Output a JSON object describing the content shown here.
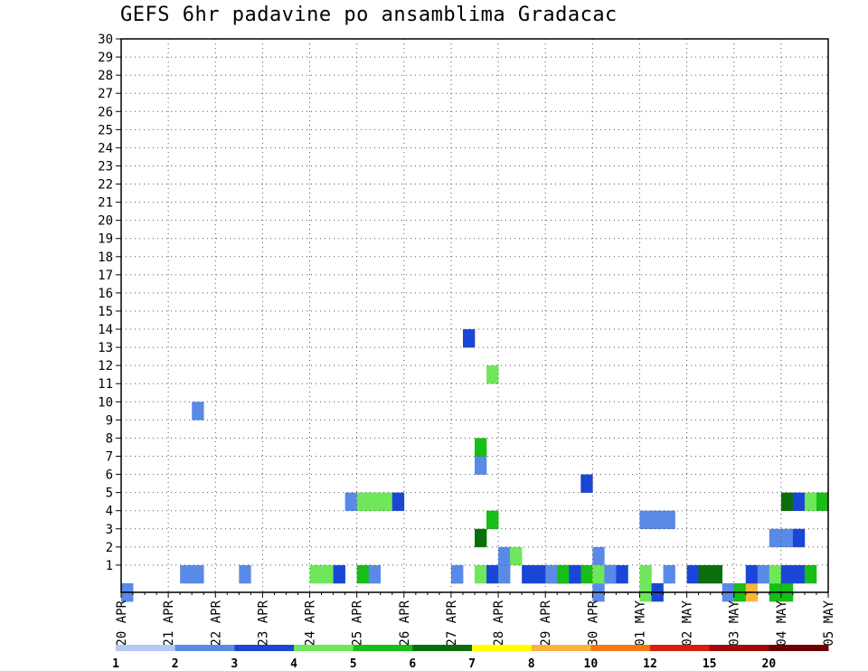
{
  "chart_data": {
    "type": "heatmap",
    "title": "GEFS 6hr padavine po ansamblima Gradacac",
    "xlabel": "",
    "ylabel": "",
    "x_tick_labels": [
      "20 APR",
      "21 APR",
      "22 APR",
      "23 APR",
      "24 APR",
      "25 APR",
      "26 APR",
      "27 APR",
      "28 APR",
      "29 APR",
      "30 APR",
      "01 MAY",
      "02 MAY",
      "03 MAY",
      "04 MAY",
      "05 MAY"
    ],
    "y_tick_labels": [
      "1",
      "2",
      "3",
      "4",
      "5",
      "6",
      "7",
      "8",
      "9",
      "10",
      "11",
      "12",
      "13",
      "14",
      "15",
      "16",
      "17",
      "18",
      "19",
      "20",
      "21",
      "22",
      "23",
      "24",
      "25",
      "26",
      "27",
      "28",
      "29",
      "30"
    ],
    "steps_per_day": 4,
    "member_range": [
      0,
      30
    ],
    "grid": true,
    "colorbar": {
      "labels": [
        "1",
        "2",
        "3",
        "4",
        "5",
        "6",
        "7",
        "8",
        "10",
        "12",
        "15",
        "20"
      ],
      "colors": [
        "#b4c8f4",
        "#5a8ae8",
        "#1a46d6",
        "#6ee85a",
        "#16be16",
        "#0a6e0a",
        "#ffff00",
        "#f9b43c",
        "#f47814",
        "#d81e0e",
        "#a00c0c",
        "#6e0000"
      ]
    },
    "cells": [
      [
        0,
        0,
        1
      ],
      [
        6,
        1,
        1
      ],
      [
        34,
        1,
        2
      ],
      [
        31,
        4,
        3
      ],
      [
        30,
        7,
        1
      ],
      [
        39,
        6,
        2
      ],
      [
        30,
        8,
        4
      ],
      [
        6,
        10,
        1
      ],
      [
        31,
        12,
        3
      ],
      [
        29,
        14,
        2
      ],
      [
        28,
        1,
        1
      ],
      [
        32,
        2,
        1
      ],
      [
        33,
        2,
        3
      ],
      [
        30,
        3,
        5
      ],
      [
        31,
        4,
        4
      ],
      [
        36,
        1,
        1
      ],
      [
        37,
        1,
        2
      ],
      [
        38,
        1,
        4
      ],
      [
        39,
        1,
        4
      ],
      [
        40,
        2,
        1
      ],
      [
        40,
        1,
        6
      ],
      [
        41,
        1,
        5
      ],
      [
        40,
        0,
        1
      ],
      [
        44,
        0,
        3
      ],
      [
        45,
        0,
        2
      ],
      [
        51,
        0,
        1
      ],
      [
        52,
        0,
        4
      ],
      [
        53,
        0,
        7
      ],
      [
        55,
        0,
        4
      ],
      [
        56,
        0,
        4
      ],
      [
        60,
        0,
        1
      ],
      [
        61,
        0,
        5
      ],
      [
        62,
        0,
        4
      ],
      [
        0,
        0,
        1
      ],
      [
        5,
        1,
        1
      ],
      [
        10,
        1,
        1
      ],
      [
        16,
        1,
        3
      ],
      [
        17,
        1,
        3
      ],
      [
        18,
        1,
        2
      ],
      [
        20,
        1,
        4
      ],
      [
        21,
        1,
        1
      ],
      [
        28,
        1,
        1
      ],
      [
        30,
        1,
        3
      ],
      [
        31,
        1,
        2
      ],
      [
        32,
        1,
        1
      ],
      [
        35,
        1,
        2
      ],
      [
        36,
        1,
        1
      ],
      [
        37,
        1,
        4
      ],
      [
        38,
        1,
        2
      ],
      [
        40,
        1,
        3
      ],
      [
        41,
        1,
        1
      ],
      [
        42,
        1,
        2
      ],
      [
        44,
        1,
        3
      ],
      [
        46,
        1,
        1
      ],
      [
        48,
        1,
        2
      ],
      [
        49,
        1,
        5
      ],
      [
        50,
        1,
        5
      ],
      [
        53,
        1,
        2
      ],
      [
        54,
        1,
        1
      ],
      [
        55,
        1,
        3
      ],
      [
        56,
        1,
        2
      ],
      [
        57,
        1,
        2
      ],
      [
        58,
        1,
        4
      ],
      [
        60,
        1,
        1
      ],
      [
        61,
        1,
        2
      ],
      [
        62,
        1,
        1
      ],
      [
        63,
        1,
        2
      ],
      [
        55,
        3,
        1
      ],
      [
        56,
        3,
        1
      ],
      [
        57,
        3,
        2
      ],
      [
        44,
        4,
        1
      ],
      [
        45,
        4,
        1
      ],
      [
        46,
        4,
        1
      ],
      [
        19,
        5,
        1
      ],
      [
        20,
        5,
        3
      ],
      [
        21,
        5,
        3
      ],
      [
        22,
        5,
        3
      ],
      [
        23,
        5,
        2
      ],
      [
        56,
        5,
        5
      ],
      [
        57,
        5,
        2
      ],
      [
        58,
        5,
        3
      ],
      [
        59,
        5,
        4
      ]
    ]
  }
}
